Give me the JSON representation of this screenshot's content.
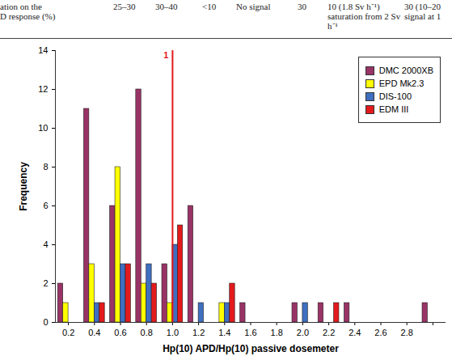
{
  "table_fragment": {
    "cells": [
      "ation on the\nD response (%)",
      "25–30",
      "30–40",
      "<10",
      "No signal",
      "30",
      "10 (1.8 Sv h⁻¹)\nsaturation from 2 Sv\nh⁻¹",
      "30 (10–20\nsignal at 1"
    ]
  },
  "chart_data": {
    "type": "bar",
    "x_label": "Hp(10) APD/Hp(10) passive dosemeter",
    "y_label": "Frequency",
    "categories": [
      "0.2",
      "0.4",
      "0.6",
      "0.8",
      "1.0",
      "1.2",
      "1.4",
      "1.6",
      "1.8",
      "2.0",
      "2.2",
      "2.4",
      "2.6",
      "2.8",
      null
    ],
    "series": [
      {
        "name": "DMC 2000XB",
        "color": "#993366",
        "values": [
          2,
          11,
          6,
          12,
          3,
          6,
          0,
          1,
          0,
          1,
          1,
          1,
          0,
          0,
          1
        ]
      },
      {
        "name": "EPD Mk2.3",
        "color": "#ffff00",
        "values": [
          1,
          3,
          8,
          2,
          1,
          0,
          1,
          0,
          0,
          0,
          0,
          0,
          0,
          0,
          0
        ]
      },
      {
        "name": "DIS-100",
        "color": "#3f6fc0",
        "values": [
          0,
          1,
          3,
          3,
          4,
          1,
          1,
          0,
          0,
          1,
          0,
          0,
          0,
          0,
          0
        ]
      },
      {
        "name": "EDM III",
        "color": "#e31a1c",
        "values": [
          0,
          1,
          3,
          2,
          5,
          0,
          2,
          0,
          0,
          0,
          1,
          0,
          0,
          0,
          0
        ]
      }
    ],
    "ylim": [
      0,
      14
    ],
    "yticks": [
      0,
      2,
      4,
      6,
      8,
      10,
      12,
      14
    ],
    "grid": false,
    "legend": "top-right",
    "annotations": [
      {
        "text": "1",
        "x": "1.0",
        "color": "#e31a1c"
      }
    ]
  }
}
